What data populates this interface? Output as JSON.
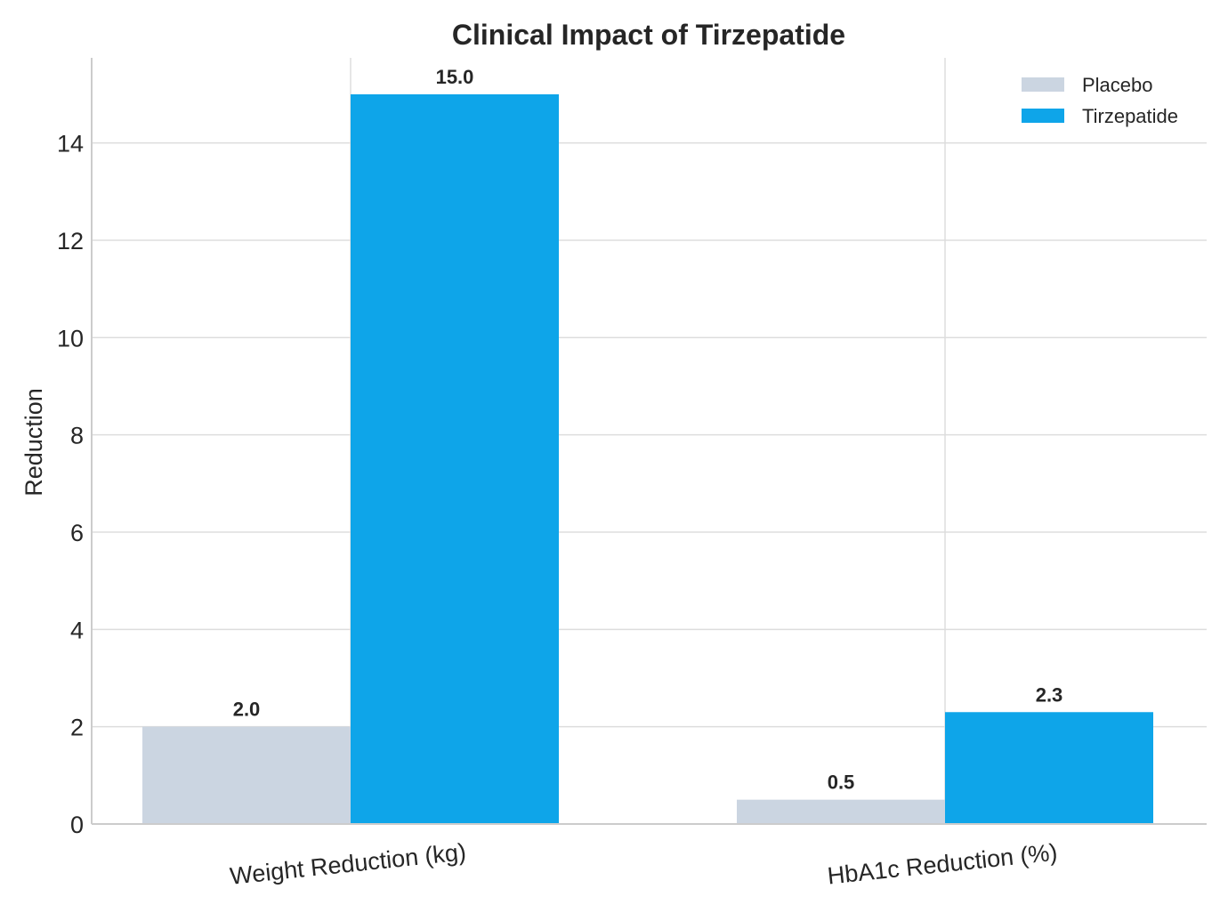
{
  "chart_data": {
    "type": "bar",
    "title": "Clinical Impact of Tirzepatide",
    "xlabel": "",
    "ylabel": "Reduction",
    "categories": [
      "Weight Reduction (kg)",
      "HbA1c Reduction (%)"
    ],
    "series": [
      {
        "name": "Placebo",
        "color": "#cbd5e1",
        "values": [
          2.0,
          0.5
        ],
        "labels": [
          "2.0",
          "0.5"
        ]
      },
      {
        "name": "Tirzepatide",
        "color": "#0ea5e9",
        "values": [
          15.0,
          2.3
        ],
        "labels": [
          "15.0",
          "2.3"
        ]
      }
    ],
    "ylim": [
      0,
      15.75
    ],
    "yticks": [
      0,
      2,
      4,
      6,
      8,
      10,
      12,
      14
    ],
    "ytick_labels": [
      "0",
      "2",
      "4",
      "6",
      "8",
      "10",
      "12",
      "14"
    ],
    "grid": true,
    "legend_position": "top-right"
  }
}
